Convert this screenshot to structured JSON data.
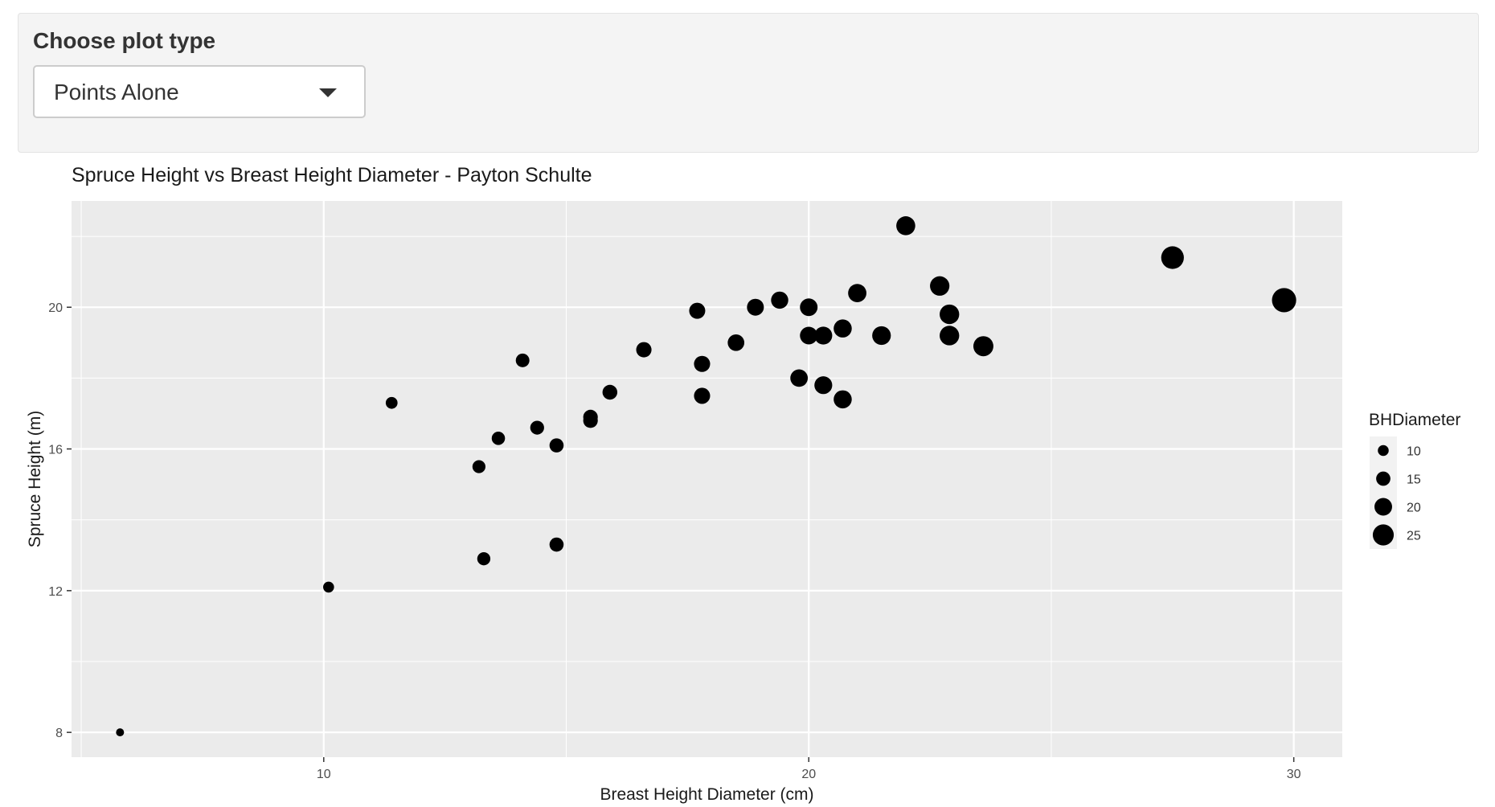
{
  "control": {
    "label": "Choose plot type",
    "selected": "Points Alone",
    "caret_icon": "caret-down-icon"
  },
  "chart_data": {
    "type": "scatter",
    "title": "Spruce Height vs Breast Height Diameter - Payton Schulte",
    "xlabel": "Breast Height Diameter (cm)",
    "ylabel": "Spruce Height (m)",
    "xlim": [
      4.8,
      31
    ],
    "ylim": [
      7.3,
      23
    ],
    "xticks": [
      10,
      20,
      30
    ],
    "yticks": [
      8,
      12,
      16,
      20
    ],
    "grid": true,
    "point_color": "#000000",
    "panel_background": "#ebebeb",
    "legend": {
      "title": "BHDiameter",
      "placement": "right",
      "entries": [
        {
          "label": "10",
          "value": 10
        },
        {
          "label": "15",
          "value": 15
        },
        {
          "label": "20",
          "value": 20
        },
        {
          "label": "25",
          "value": 25
        }
      ]
    },
    "points": [
      {
        "x": 5.8,
        "y": 8.0
      },
      {
        "x": 10.1,
        "y": 12.1
      },
      {
        "x": 11.4,
        "y": 17.3
      },
      {
        "x": 13.2,
        "y": 15.5
      },
      {
        "x": 13.3,
        "y": 12.9
      },
      {
        "x": 13.6,
        "y": 16.3
      },
      {
        "x": 14.1,
        "y": 18.5
      },
      {
        "x": 14.4,
        "y": 16.6
      },
      {
        "x": 14.8,
        "y": 16.1
      },
      {
        "x": 14.8,
        "y": 13.3
      },
      {
        "x": 15.5,
        "y": 16.9
      },
      {
        "x": 15.5,
        "y": 16.8
      },
      {
        "x": 15.9,
        "y": 17.6
      },
      {
        "x": 16.6,
        "y": 18.8
      },
      {
        "x": 17.7,
        "y": 19.9
      },
      {
        "x": 17.8,
        "y": 18.4
      },
      {
        "x": 17.8,
        "y": 17.5
      },
      {
        "x": 18.5,
        "y": 19.0
      },
      {
        "x": 18.9,
        "y": 20.0
      },
      {
        "x": 19.4,
        "y": 20.2
      },
      {
        "x": 19.8,
        "y": 18.0
      },
      {
        "x": 20.0,
        "y": 20.0
      },
      {
        "x": 20.0,
        "y": 19.2
      },
      {
        "x": 20.3,
        "y": 19.2
      },
      {
        "x": 20.3,
        "y": 17.8
      },
      {
        "x": 20.7,
        "y": 19.4
      },
      {
        "x": 20.7,
        "y": 17.4
      },
      {
        "x": 21.0,
        "y": 20.4
      },
      {
        "x": 21.5,
        "y": 19.2
      },
      {
        "x": 22.0,
        "y": 22.3
      },
      {
        "x": 22.7,
        "y": 20.6
      },
      {
        "x": 22.9,
        "y": 19.8
      },
      {
        "x": 22.9,
        "y": 19.2
      },
      {
        "x": 23.6,
        "y": 18.9
      },
      {
        "x": 27.5,
        "y": 21.4
      },
      {
        "x": 29.8,
        "y": 20.2
      }
    ]
  }
}
